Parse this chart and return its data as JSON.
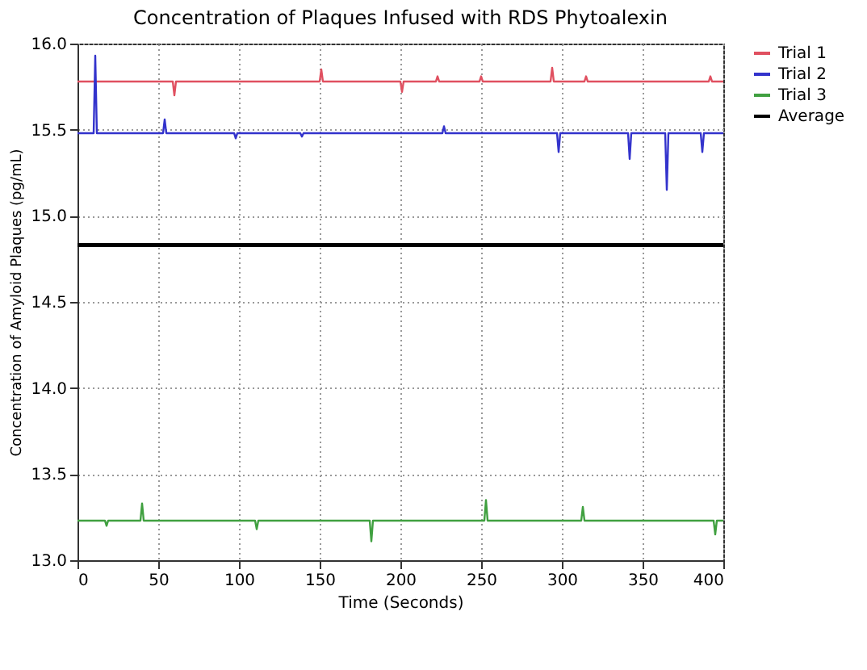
{
  "chart_data": {
    "type": "line",
    "title": "Concentration of Plaques Infused with RDS Phytoalexin",
    "xlabel": "Time (Seconds)",
    "ylabel": "Concentration of Amyloid Plaques (pg/mL)",
    "xlim": [
      0,
      400
    ],
    "xticks": [
      0,
      50,
      100,
      150,
      200,
      250,
      300,
      350,
      400
    ],
    "ylim": [
      13.0,
      16.0
    ],
    "yticks": [
      {
        "value": 13.0,
        "label": "13.0"
      },
      {
        "value": 13.5,
        "label": "13.5"
      },
      {
        "value": 14.0,
        "label": "14.0"
      },
      {
        "value": 14.5,
        "label": "14.5"
      },
      {
        "value": 15.0,
        "label": "15.0"
      },
      {
        "value": 15.5,
        "label": "15.5"
      },
      {
        "value": 16.0,
        "label": "16.0"
      }
    ],
    "grid": true,
    "legend": "top right",
    "marker": "none",
    "line_style": "solid",
    "series": [
      {
        "name": "Trial 1",
        "color": "#e05060",
        "x": [
          0,
          59,
          60,
          61,
          150,
          151,
          152,
          200,
          201,
          202,
          222,
          223,
          224,
          249,
          250,
          251,
          293,
          294,
          295,
          314,
          315,
          316,
          391,
          392,
          393,
          400
        ],
        "values": [
          15.78,
          15.78,
          15.7,
          15.78,
          15.78,
          15.85,
          15.78,
          15.78,
          15.72,
          15.78,
          15.78,
          15.81,
          15.78,
          15.78,
          15.81,
          15.78,
          15.78,
          15.86,
          15.78,
          15.78,
          15.81,
          15.78,
          15.78,
          15.81,
          15.78,
          15.78
        ]
      },
      {
        "name": "Trial 2",
        "color": "#3333cc",
        "x": [
          0,
          10,
          11,
          12,
          53,
          54,
          55,
          97,
          98,
          99,
          138,
          139,
          140,
          226,
          227,
          228,
          297,
          298,
          299,
          341,
          342,
          343,
          364,
          365,
          366,
          386,
          387,
          388,
          400
        ],
        "values": [
          15.48,
          15.48,
          15.93,
          15.48,
          15.48,
          15.56,
          15.48,
          15.48,
          15.45,
          15.48,
          15.48,
          15.46,
          15.48,
          15.48,
          15.52,
          15.48,
          15.48,
          15.37,
          15.48,
          15.48,
          15.33,
          15.48,
          15.48,
          15.15,
          15.48,
          15.48,
          15.37,
          15.48,
          15.48
        ]
      },
      {
        "name": "Trial 3",
        "color": "#40a040",
        "x": [
          0,
          17,
          18,
          19,
          39,
          40,
          41,
          110,
          111,
          112,
          181,
          182,
          183,
          252,
          253,
          254,
          312,
          313,
          314,
          394,
          395,
          396,
          400
        ],
        "values": [
          13.23,
          13.23,
          13.2,
          13.23,
          13.23,
          13.33,
          13.23,
          13.23,
          13.18,
          13.23,
          13.23,
          13.11,
          13.23,
          13.23,
          13.35,
          13.23,
          13.23,
          13.31,
          13.23,
          13.23,
          13.15,
          13.23,
          13.23
        ]
      },
      {
        "name": "Average",
        "color": "#000000",
        "x": [
          0,
          400
        ],
        "values": [
          14.83,
          14.83
        ]
      }
    ]
  }
}
